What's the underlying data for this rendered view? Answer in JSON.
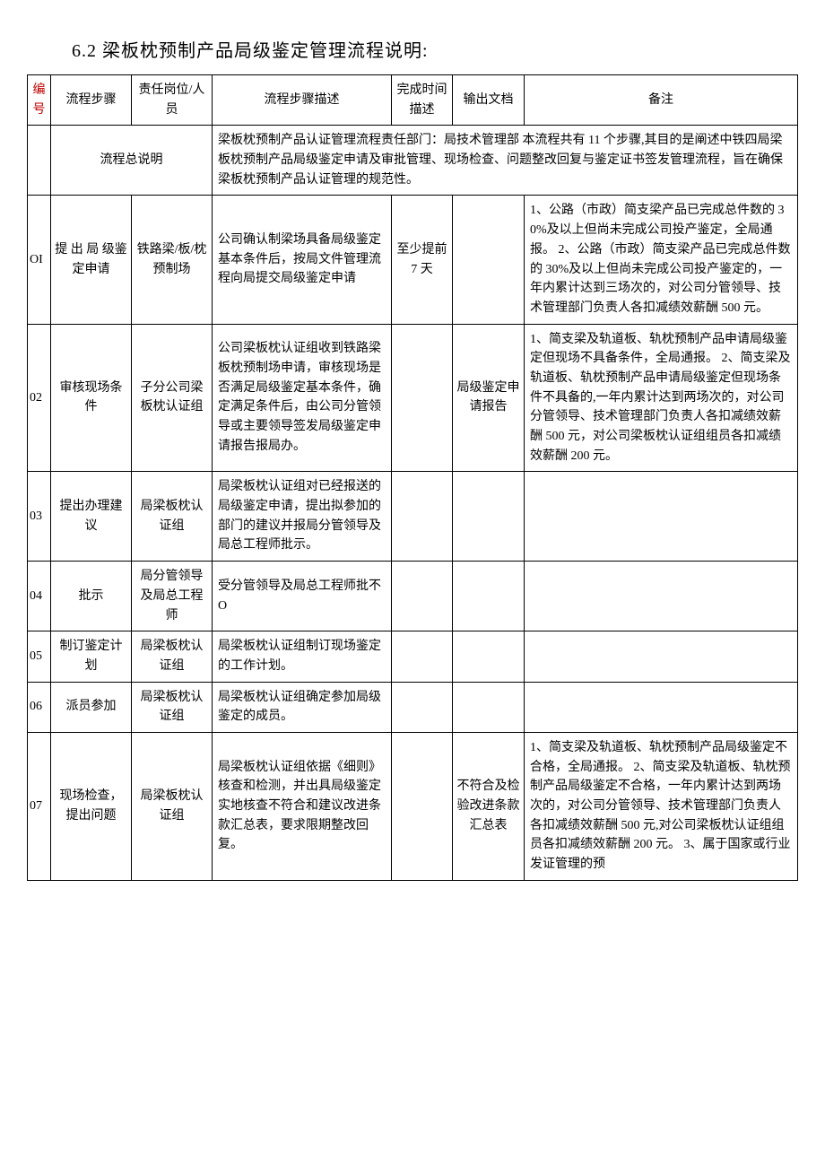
{
  "title": "6.2 梁板枕预制产品局级鉴定管理流程说明:",
  "columns": {
    "c0": "编号",
    "c1": "流程步骤",
    "c2": "责任岗位/人员",
    "c3": "流程步骤描述",
    "c4": "完成时间描述",
    "c5": "输出文档",
    "c6": "备注"
  },
  "overview": {
    "label": "流程总说明",
    "desc": "梁板枕预制产品认证管理流程责任部门：局技术管理部\n本流程共有 11 个步骤,其目的是阐述中铁四局梁板枕预制产品局级鉴定申请及审批管理、现场检查、问题整改回复与鉴定证书签发管理流程，旨在确保梁板枕预制产品认证管理的规范性。"
  },
  "rows": [
    {
      "num": "OI",
      "step": "提 出 局 级鉴定申请",
      "resp": "铁路梁/板/枕预制场",
      "desc": "公司确认制梁场具备局级鉴定基本条件后，按局文件管理流程向局提交局级鉴定申请",
      "time": "至少提前 7 天",
      "out": "",
      "note": "1、公路（市政）简支梁产品已完成总件数的 30%及以上但尚未完成公司投产鉴定，全局通报。\n2、公路（市政）简支梁产品已完成总件数的 30%及以上但尚未完成公司投产鉴定的，一年内累计达到三场次的，对公司分管领导、技术管理部门负责人各扣减绩效薪酬 500 元。"
    },
    {
      "num": "02",
      "step": "审核现场条件",
      "resp": "子分公司梁板枕认证组",
      "desc": "公司梁板枕认证组收到铁路梁板枕预制场申请，审核现场是否满足局级鉴定基本条件，确定满足条件后，由公司分管领导或主要领导签发局级鉴定申请报告报局办。",
      "time": "",
      "out": "局级鉴定申请报告",
      "note": "1、简支梁及轨道板、轨枕预制产品申请局级鉴定但现场不具备条件，全局通报。\n2、简支梁及轨道板、轨枕预制产品申请局级鉴定但现场条件不具备的,一年内累计达到两场次的，对公司分管领导、技术管理部门负责人各扣减绩效薪酬 500 元，对公司梁板枕认证组组员各扣减绩效薪酬 200 元。"
    },
    {
      "num": "03",
      "step": "提出办理建议",
      "resp": "局梁板枕认证组",
      "desc": "局梁板枕认证组对已经报送的局级鉴定申请，提出拟参加的部门的建议并报局分管领导及局总工程师批示。",
      "time": "",
      "out": "",
      "note": ""
    },
    {
      "num": "04",
      "step": "批示",
      "resp": "局分管领导及局总工程师",
      "desc": "受分管领导及局总工程师批不 O",
      "time": "",
      "out": "",
      "note": ""
    },
    {
      "num": "05",
      "step": "制订鉴定计划",
      "resp": "局梁板枕认证组",
      "desc": "局梁板枕认证组制订现场鉴定的工作计划。",
      "time": "",
      "out": "",
      "note": ""
    },
    {
      "num": "06",
      "step": "派员参加",
      "resp": "局梁板枕认证组",
      "desc": "局梁板枕认证组确定参加局级鉴定的成员。",
      "time": "",
      "out": "",
      "note": ""
    },
    {
      "num": "07",
      "step": "现场检查，提出问题",
      "resp": "局梁板枕认证组",
      "desc": "局梁板枕认证组依据《细则》核查和检测，并出具局级鉴定实地核查不符合和建议改进条款汇总表，要求限期整改回复。",
      "time": "",
      "out": "不符合及检验改进条款汇总表",
      "note": "1、简支梁及轨道板、轨枕预制产品局级鉴定不合格，全局通报。\n2、简支梁及轨道板、轨枕预制产品局级鉴定不合格，一年内累计达到两场次的，对公司分管领导、技术管理部门负责人各扣减绩效薪酬 500 元,对公司梁板枕认证组组员各扣减绩效薪酬 200 元。\n3、属于国家或行业发证管理的预"
    }
  ]
}
